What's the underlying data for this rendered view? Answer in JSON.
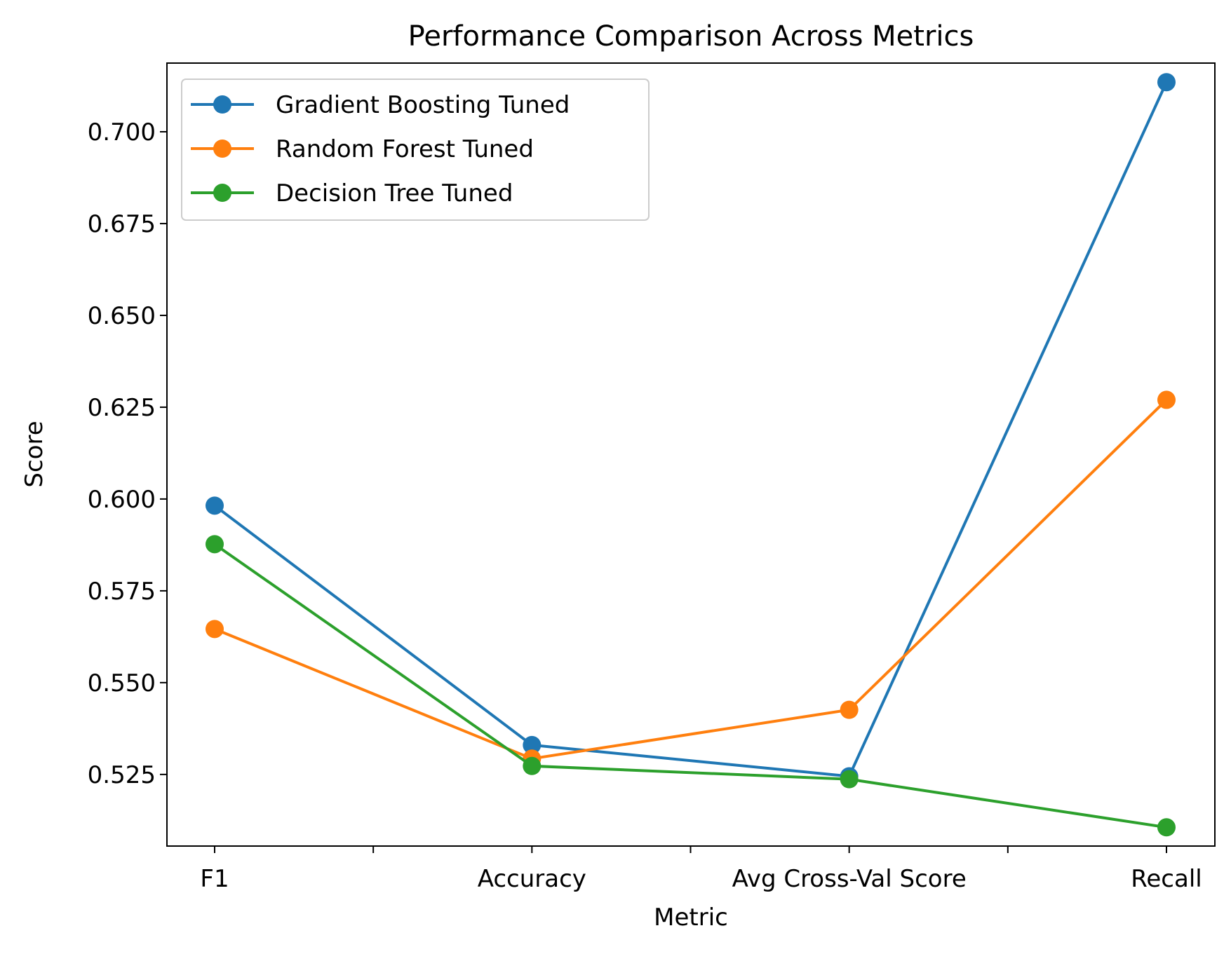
{
  "chart_data": {
    "type": "line",
    "title": "Performance Comparison Across Metrics",
    "xlabel": "Metric",
    "ylabel": "Score",
    "categories": [
      "F1",
      "Accuracy",
      "Avg Cross-Val Score",
      "Recall"
    ],
    "ylim": [
      0.5055,
      0.7187
    ],
    "yticks": [
      "0.525",
      "0.550",
      "0.575",
      "0.600",
      "0.625",
      "0.650",
      "0.675",
      "0.700"
    ],
    "grid": false,
    "legend_position": "top-left",
    "series": [
      {
        "name": "Gradient Boosting Tuned",
        "color": "#1f77b4",
        "values": [
          0.5982,
          0.533,
          0.5245,
          0.7135
        ]
      },
      {
        "name": "Random Forest Tuned",
        "color": "#ff7f0e",
        "values": [
          0.5646,
          0.5293,
          0.5426,
          0.627
        ]
      },
      {
        "name": "Decision Tree Tuned",
        "color": "#2ca02c",
        "values": [
          0.5877,
          0.5273,
          0.5237,
          0.5106
        ]
      }
    ]
  }
}
